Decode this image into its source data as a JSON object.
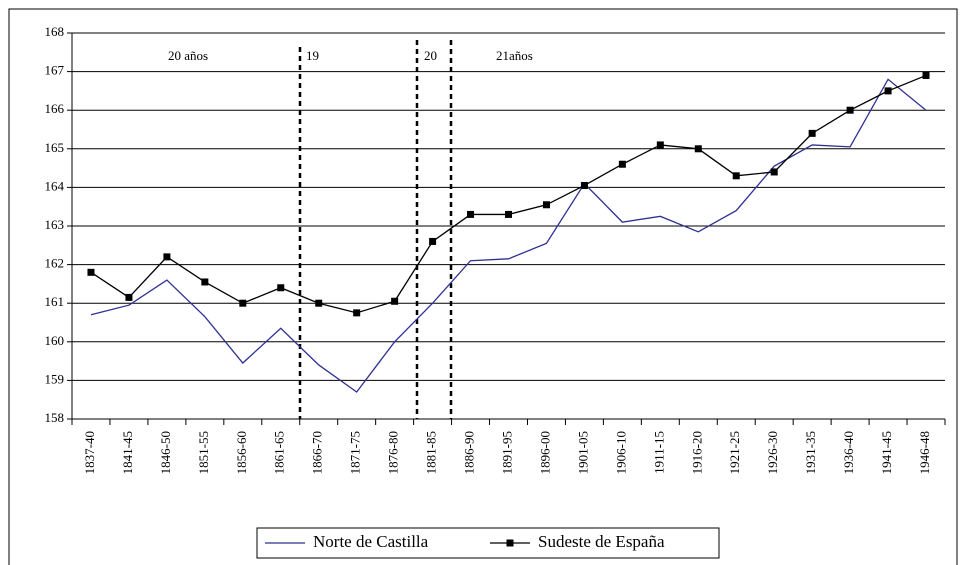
{
  "chart_data": {
    "type": "line",
    "categories": [
      "1837-40",
      "1841-45",
      "1846-50",
      "1851-55",
      "1856-60",
      "1861-65",
      "1866-70",
      "1871-75",
      "1876-80",
      "1881-85",
      "1886-90",
      "1891-95",
      "1896-00",
      "1901-05",
      "1906-10",
      "1911-15",
      "1916-20",
      "1921-25",
      "1926-30",
      "1931-35",
      "1936-40",
      "1941-45",
      "1946-48"
    ],
    "series": [
      {
        "name": "Norte de Castilla",
        "color": "#2e3192",
        "marker": "none",
        "values": [
          160.7,
          160.95,
          161.6,
          160.65,
          159.45,
          160.35,
          159.4,
          158.7,
          160.0,
          161.0,
          162.1,
          162.15,
          162.55,
          164.1,
          163.1,
          163.25,
          162.85,
          163.4,
          164.55,
          165.1,
          165.05,
          166.8,
          166.0
        ]
      },
      {
        "name": "Sudeste de España",
        "color": "#000000",
        "marker": "square",
        "values": [
          161.8,
          161.15,
          162.2,
          161.55,
          161.0,
          161.4,
          161.0,
          160.75,
          161.05,
          162.6,
          163.3,
          163.3,
          163.55,
          164.05,
          164.6,
          165.1,
          165.0,
          164.3,
          164.4,
          165.4,
          166.0,
          166.5,
          166.9
        ]
      }
    ],
    "annotations": [
      "20 años",
      "19",
      "20",
      "21años"
    ],
    "ylim": [
      158,
      168
    ],
    "yticks": [
      158,
      159,
      160,
      161,
      162,
      163,
      164,
      165,
      166,
      167,
      168
    ],
    "grid": true,
    "legend": "bottom"
  }
}
